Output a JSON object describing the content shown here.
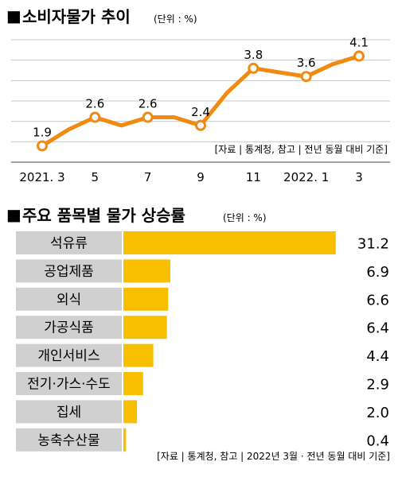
{
  "chart_data": [
    {
      "type": "line",
      "title": "소비자물가 추이",
      "unit": "(단위 : %)",
      "x": [
        "2021.3",
        "2021.4",
        "2021.5",
        "2021.6",
        "2021.7",
        "2021.8",
        "2021.9",
        "2021.10",
        "2021.11",
        "2021.12",
        "2022.1",
        "2022.2",
        "2022.3"
      ],
      "values": [
        1.9,
        2.3,
        2.6,
        2.4,
        2.6,
        2.6,
        2.4,
        3.2,
        3.8,
        3.7,
        3.6,
        3.9,
        4.1
      ],
      "point_labels": [
        {
          "index": 0,
          "text": "1.9"
        },
        {
          "index": 2,
          "text": "2.6"
        },
        {
          "index": 4,
          "text": "2.6"
        },
        {
          "index": 6,
          "text": "2.4"
        },
        {
          "index": 8,
          "text": "3.8"
        },
        {
          "index": 10,
          "text": "3.6"
        },
        {
          "index": 12,
          "text": "4.1"
        }
      ],
      "xticks": [
        {
          "index": 0,
          "text": "2021. 3"
        },
        {
          "index": 2,
          "text": "5"
        },
        {
          "index": 4,
          "text": "7"
        },
        {
          "index": 6,
          "text": "9"
        },
        {
          "index": 8,
          "text": "11"
        },
        {
          "index": 10,
          "text": "2022. 1"
        },
        {
          "index": 12,
          "text": "3"
        }
      ],
      "ylim": [
        1.5,
        4.5
      ],
      "source": "[자료 | 통계청, 참고 | 전년 동월 대비 기준]",
      "grid": true,
      "color": "#f08a10"
    },
    {
      "type": "bar",
      "orientation": "horizontal",
      "title": "주요 품목별 물가 상승률",
      "unit": "(단위 : %)",
      "categories": [
        "석유류",
        "공업제품",
        "외식",
        "가공식품",
        "개인서비스",
        "전기·가스·수도",
        "집세",
        "농축수산물"
      ],
      "values": [
        31.2,
        6.9,
        6.6,
        6.4,
        4.4,
        2.9,
        2.0,
        0.4
      ],
      "value_labels": [
        "31.2",
        "6.9",
        "6.6",
        "6.4",
        "4.4",
        "2.9",
        "2.0",
        "0.4"
      ],
      "xlim": [
        0,
        34.5
      ],
      "source": "[자료 | 통계청, 참고 | 2022년 3월 · 전년 동월 대비 기준]",
      "bar_color": "#f8be00",
      "label_box_color": "#d0d0d0"
    }
  ]
}
